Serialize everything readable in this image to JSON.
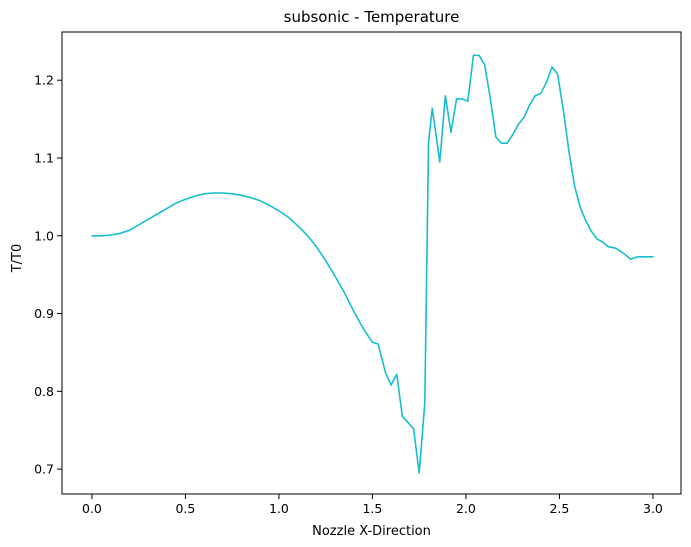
{
  "chart_data": {
    "type": "line",
    "title": "subsonic - Temperature",
    "xlabel": "Nozzle X-Direction",
    "ylabel": "T/T0",
    "xlim": [
      -0.16,
      3.15
    ],
    "ylim": [
      0.668,
      1.262
    ],
    "xticks": [
      0.0,
      0.5,
      1.0,
      1.5,
      2.0,
      2.5,
      3.0
    ],
    "xtick_labels": [
      "0.0",
      "0.5",
      "1.0",
      "1.5",
      "2.0",
      "2.5",
      "3.0"
    ],
    "yticks": [
      0.7,
      0.8,
      0.9,
      1.0,
      1.1,
      1.2
    ],
    "ytick_labels": [
      "0.7",
      "0.8",
      "0.9",
      "1.0",
      "1.1",
      "1.2"
    ],
    "grid": false,
    "series": [
      {
        "color": "#17becf",
        "x": [
          0.0,
          0.05,
          0.1,
          0.15,
          0.2,
          0.25,
          0.3,
          0.35,
          0.4,
          0.45,
          0.5,
          0.55,
          0.6,
          0.65,
          0.7,
          0.75,
          0.8,
          0.85,
          0.9,
          0.95,
          1.0,
          1.05,
          1.1,
          1.15,
          1.2,
          1.25,
          1.3,
          1.35,
          1.4,
          1.45,
          1.5,
          1.53,
          1.57,
          1.6,
          1.63,
          1.66,
          1.69,
          1.72,
          1.75,
          1.78,
          1.8,
          1.82,
          1.84,
          1.86,
          1.89,
          1.92,
          1.95,
          1.98,
          2.01,
          2.04,
          2.07,
          2.1,
          2.13,
          2.16,
          2.19,
          2.22,
          2.25,
          2.28,
          2.31,
          2.34,
          2.37,
          2.4,
          2.43,
          2.46,
          2.49,
          2.52,
          2.55,
          2.58,
          2.61,
          2.64,
          2.67,
          2.7,
          2.73,
          2.76,
          2.8,
          2.84,
          2.88,
          2.92,
          2.96,
          3.0
        ],
        "y": [
          1.0,
          1.0,
          1.001,
          1.003,
          1.007,
          1.014,
          1.021,
          1.028,
          1.035,
          1.042,
          1.047,
          1.051,
          1.054,
          1.055,
          1.055,
          1.054,
          1.052,
          1.049,
          1.045,
          1.039,
          1.032,
          1.024,
          1.013,
          1.001,
          0.986,
          0.968,
          0.948,
          0.927,
          0.903,
          0.881,
          0.863,
          0.861,
          0.824,
          0.808,
          0.822,
          0.768,
          0.76,
          0.752,
          0.695,
          0.785,
          1.12,
          1.164,
          1.13,
          1.095,
          1.18,
          1.133,
          1.176,
          1.176,
          1.173,
          1.232,
          1.232,
          1.22,
          1.177,
          1.127,
          1.119,
          1.119,
          1.13,
          1.143,
          1.152,
          1.168,
          1.18,
          1.183,
          1.197,
          1.217,
          1.208,
          1.163,
          1.11,
          1.065,
          1.037,
          1.02,
          1.006,
          0.996,
          0.992,
          0.986,
          0.984,
          0.978,
          0.97,
          0.973,
          0.973,
          0.973
        ]
      }
    ]
  }
}
